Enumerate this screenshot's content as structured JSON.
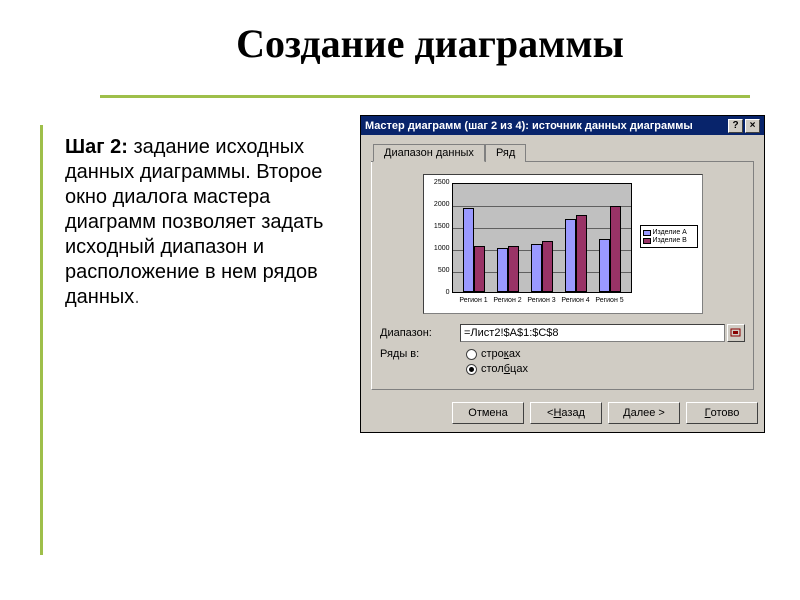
{
  "slide": {
    "title": "Создание диаграммы",
    "body_bold": "Шаг 2:",
    "body_rest": " задание исходных данных диаграммы. Второе окно диалога мастера диаграмм позволяет задать исходный диапазон и расположение в нем рядов данных",
    "accent_color": "#9ebf4a",
    "final_dot_color": "#666666"
  },
  "dialog": {
    "title": "Мастер диаграмм (шаг 2 из 4): источник данных диаграммы",
    "titlebar_bg": "#08246b",
    "window_bg": "#d0ccc4",
    "tabs": [
      {
        "label": "Диапазон данных",
        "active": true
      },
      {
        "label": "Ряд",
        "active": false
      }
    ],
    "chart": {
      "type": "bar",
      "categories": [
        "Регион 1",
        "Регион 2",
        "Регион 3",
        "Регион 4",
        "Регион 5"
      ],
      "series": [
        {
          "name": "Изделие А",
          "color": "#9a99ff",
          "values": [
            1900,
            1000,
            1100,
            1650,
            1200
          ]
        },
        {
          "name": "Изделие В",
          "color": "#993366",
          "values": [
            1050,
            1050,
            1150,
            1750,
            1950
          ]
        }
      ],
      "ylim": [
        0,
        2500
      ],
      "ytick_step": 500,
      "plot_bg": "#c0c0c0",
      "grid_color": "#000000"
    },
    "form": {
      "range_label": "Диапазон:",
      "range_value": "=Лист2!$A$1:$C$8",
      "rows_label": "Ряды в:",
      "radio_rows": "строках",
      "radio_cols": "столбцах",
      "selected": "cols"
    },
    "buttons": {
      "cancel": "Отмена",
      "back": "< Назад",
      "next": "Далее >",
      "finish": "Готово"
    }
  }
}
